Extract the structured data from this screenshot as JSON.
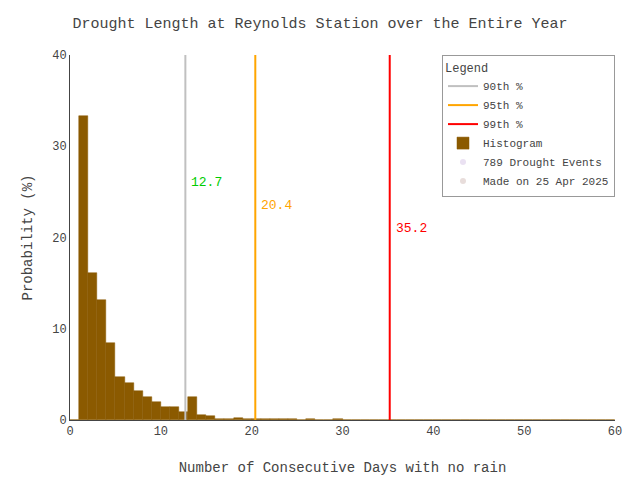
{
  "chart_data": {
    "type": "bar",
    "title": "Drought Length at Reynolds Station over the Entire Year",
    "xlabel": "Number of Consecutive Days with no rain",
    "ylabel": "Probability (%)",
    "xlim": [
      0,
      60
    ],
    "ylim": [
      0,
      40
    ],
    "xticks": [
      0,
      10,
      20,
      30,
      40,
      50,
      60
    ],
    "yticks": [
      0,
      10,
      20,
      30,
      40
    ],
    "grid": false,
    "legend": "upper right",
    "legend_title": "Legend",
    "series": [
      {
        "name": "90th %",
        "type": "vline",
        "color": "#c0c0c0",
        "x": 12.7
      },
      {
        "name": "95th %",
        "type": "vline",
        "color": "#FFA500",
        "x": 20.4
      },
      {
        "name": "99th %",
        "type": "vline",
        "color": "#FF0000",
        "x": 35.2
      },
      {
        "name": "Histogram",
        "type": "bar",
        "color": "#8B5A00",
        "bins": [
          0,
          1,
          2,
          3,
          4,
          5,
          6,
          7,
          8,
          9,
          10,
          11,
          12,
          13,
          14,
          15,
          16,
          17,
          18,
          19,
          20,
          21,
          22,
          23,
          24,
          25,
          26,
          27,
          28,
          29,
          30,
          31,
          32,
          33,
          34,
          35,
          36,
          37,
          38,
          39,
          40,
          41,
          42,
          43,
          44,
          45,
          46,
          47,
          48,
          49,
          50,
          51,
          52,
          53,
          54,
          55,
          56,
          57,
          58,
          59,
          60
        ],
        "values": [
          0.0,
          33.3,
          16.1,
          13.2,
          8.4,
          4.7,
          4.1,
          3.2,
          2.5,
          2.0,
          1.4,
          1.4,
          0.9,
          2.5,
          0.5,
          0.4,
          0.1,
          0.1,
          0.25,
          0.1,
          0.1,
          0.1,
          0.1,
          0.1,
          0.1,
          0.0,
          0.1,
          0.0,
          0.0,
          0.1,
          0.0,
          0.0,
          0.0,
          0.0,
          0.0,
          0.05,
          0.05,
          0.0,
          0.0,
          0.0,
          0.0,
          0.0,
          0.0,
          0.0,
          0.0,
          0.0,
          0.0,
          0.0,
          0.0,
          0.0,
          0.0,
          0.0,
          0.0,
          0.0,
          0.0,
          0.0,
          0.0,
          0.0,
          0.0,
          0.0
        ]
      }
    ],
    "legend_notes": [
      "789 Drought Events",
      "Made on 25 Apr 2025"
    ],
    "annotations": [
      {
        "text": "12.7",
        "x": 12.7,
        "y": 25.0,
        "color": "#00CC00"
      },
      {
        "text": "20.4",
        "x": 20.4,
        "y": 22.5,
        "color": "#FFA500"
      },
      {
        "text": "35.2",
        "x": 35.2,
        "y": 20.0,
        "color": "#FF0000"
      }
    ]
  }
}
